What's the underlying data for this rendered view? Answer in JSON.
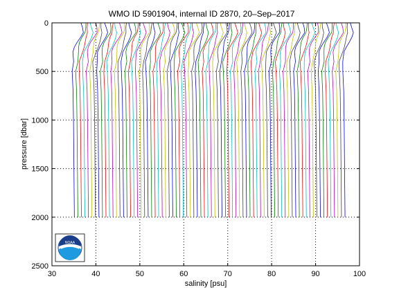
{
  "chart_data": {
    "type": "line",
    "title": "WMO ID 5901904, internal ID 2870, 20–Sep–2017",
    "xlabel": "salinity [psu]",
    "ylabel": "pressure [dbar]",
    "xlim": [
      30,
      100
    ],
    "ylim": [
      2500,
      0
    ],
    "y_reversed": true,
    "grid": true,
    "legend": "none",
    "xticks": [
      30,
      40,
      50,
      60,
      70,
      80,
      90,
      100
    ],
    "yticks": [
      0,
      500,
      1000,
      1500,
      2000,
      2500
    ],
    "xtick_labels": [
      "30",
      "40",
      "50",
      "60",
      "70",
      "80",
      "90",
      "100"
    ],
    "ytick_labels": [
      "0",
      "500",
      "1000",
      "1500",
      "2000",
      "2500"
    ],
    "series_profile": {
      "pressure": [
        0,
        50,
        100,
        150,
        200,
        250,
        300,
        400,
        500,
        700,
        1000,
        1500,
        2000
      ],
      "salinity_anomaly": [
        1.6,
        1.7,
        1.8,
        1.3,
        0.8,
        0.4,
        0.1,
        -0.2,
        -0.4,
        -0.2,
        -0.1,
        0.0,
        0.1
      ]
    },
    "series_count": 78,
    "series_offset_step": 0.8,
    "first_series_base": 35.0,
    "series_colors": [
      "#0000ff",
      "#008000",
      "#ff0000",
      "#00bfbf",
      "#bf00bf",
      "#bfbf00",
      "#404040"
    ],
    "logo": "noaa-logo"
  }
}
